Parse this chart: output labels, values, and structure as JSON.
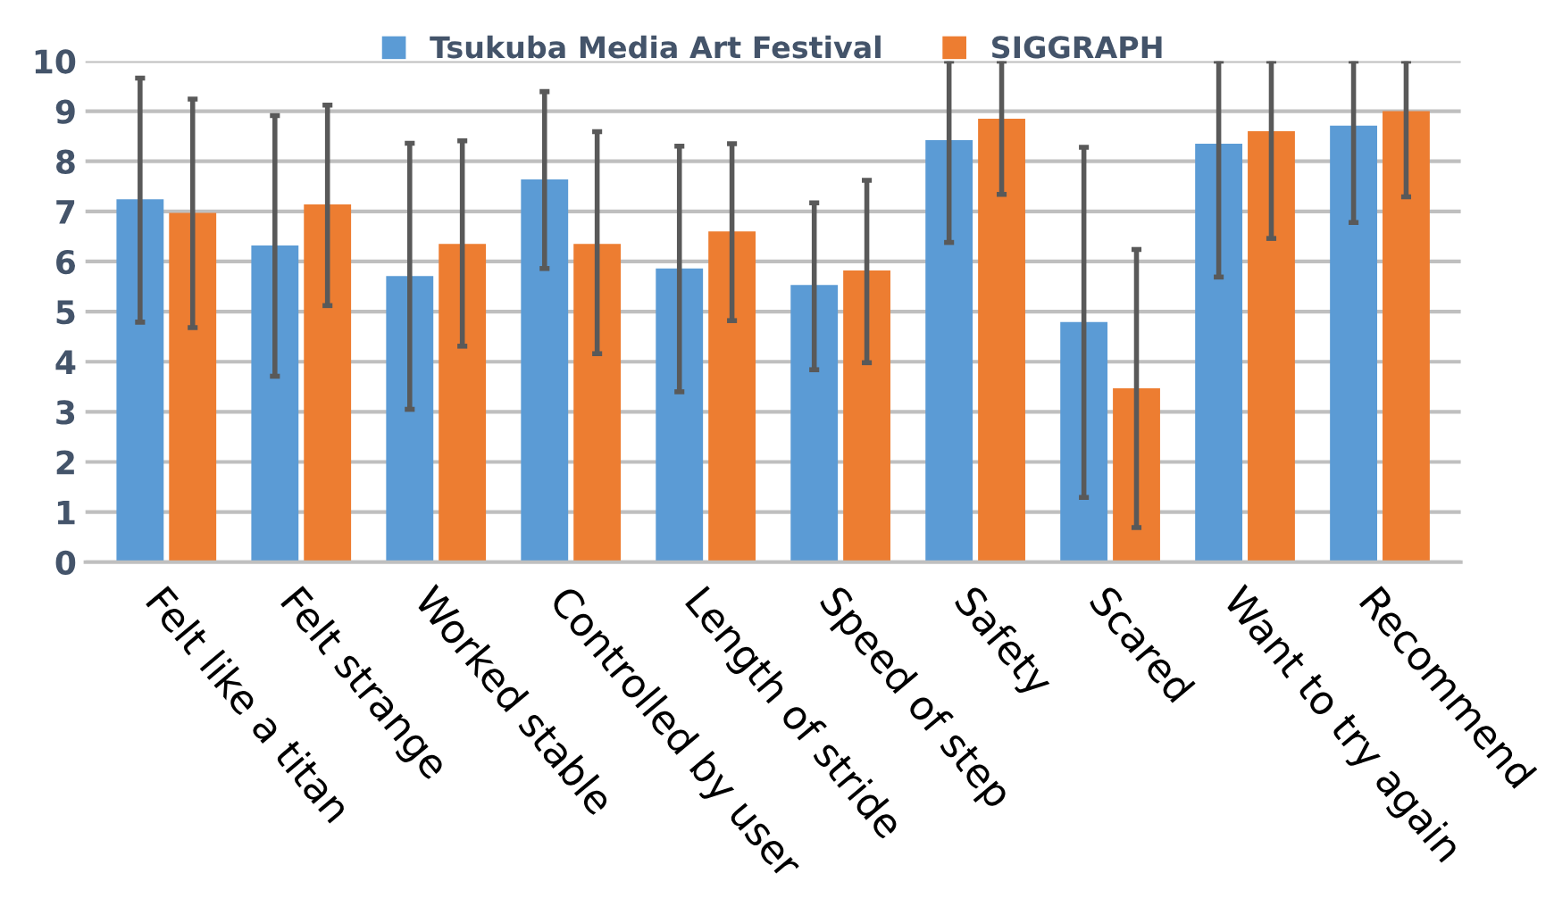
{
  "chart_data": {
    "type": "bar",
    "categories": [
      "Felt like a titan",
      "Felt strange",
      "Worked stable",
      "Controlled by user",
      "Length of stride",
      "Speed of step",
      "Safety",
      "Scared",
      "Want to try again",
      "Recommend"
    ],
    "series": [
      {
        "name": "Tsukuba Media Art Festival",
        "color": "#5b9bd5",
        "values": [
          7.24,
          6.32,
          5.71,
          7.64,
          5.86,
          5.53,
          8.42,
          4.79,
          8.35,
          8.71
        ],
        "errors": [
          [
            4.79,
            9.66
          ],
          [
            3.71,
            8.91
          ],
          [
            3.05,
            8.36
          ],
          [
            5.86,
            9.39
          ],
          [
            3.4,
            8.3
          ],
          [
            3.84,
            7.17
          ],
          [
            6.38,
            10
          ],
          [
            1.29,
            8.28
          ],
          [
            5.69,
            10
          ],
          [
            6.78,
            10
          ]
        ]
      },
      {
        "name": "SIGGRAPH",
        "color": "#ed7d31",
        "values": [
          6.97,
          7.14,
          6.35,
          6.35,
          6.6,
          5.82,
          8.85,
          3.47,
          8.6,
          9.0
        ],
        "errors": [
          [
            4.68,
            9.24
          ],
          [
            5.12,
            9.12
          ],
          [
            4.31,
            8.41
          ],
          [
            4.16,
            8.59
          ],
          [
            4.82,
            8.35
          ],
          [
            3.98,
            7.62
          ],
          [
            7.34,
            10
          ],
          [
            0.69,
            6.24
          ],
          [
            6.46,
            10
          ],
          [
            7.29,
            10
          ]
        ]
      }
    ],
    "ylim": [
      0,
      10
    ],
    "yticks": [
      0,
      1,
      2,
      3,
      4,
      5,
      6,
      7,
      8,
      9,
      10
    ],
    "grid": "y",
    "legend": "top"
  }
}
